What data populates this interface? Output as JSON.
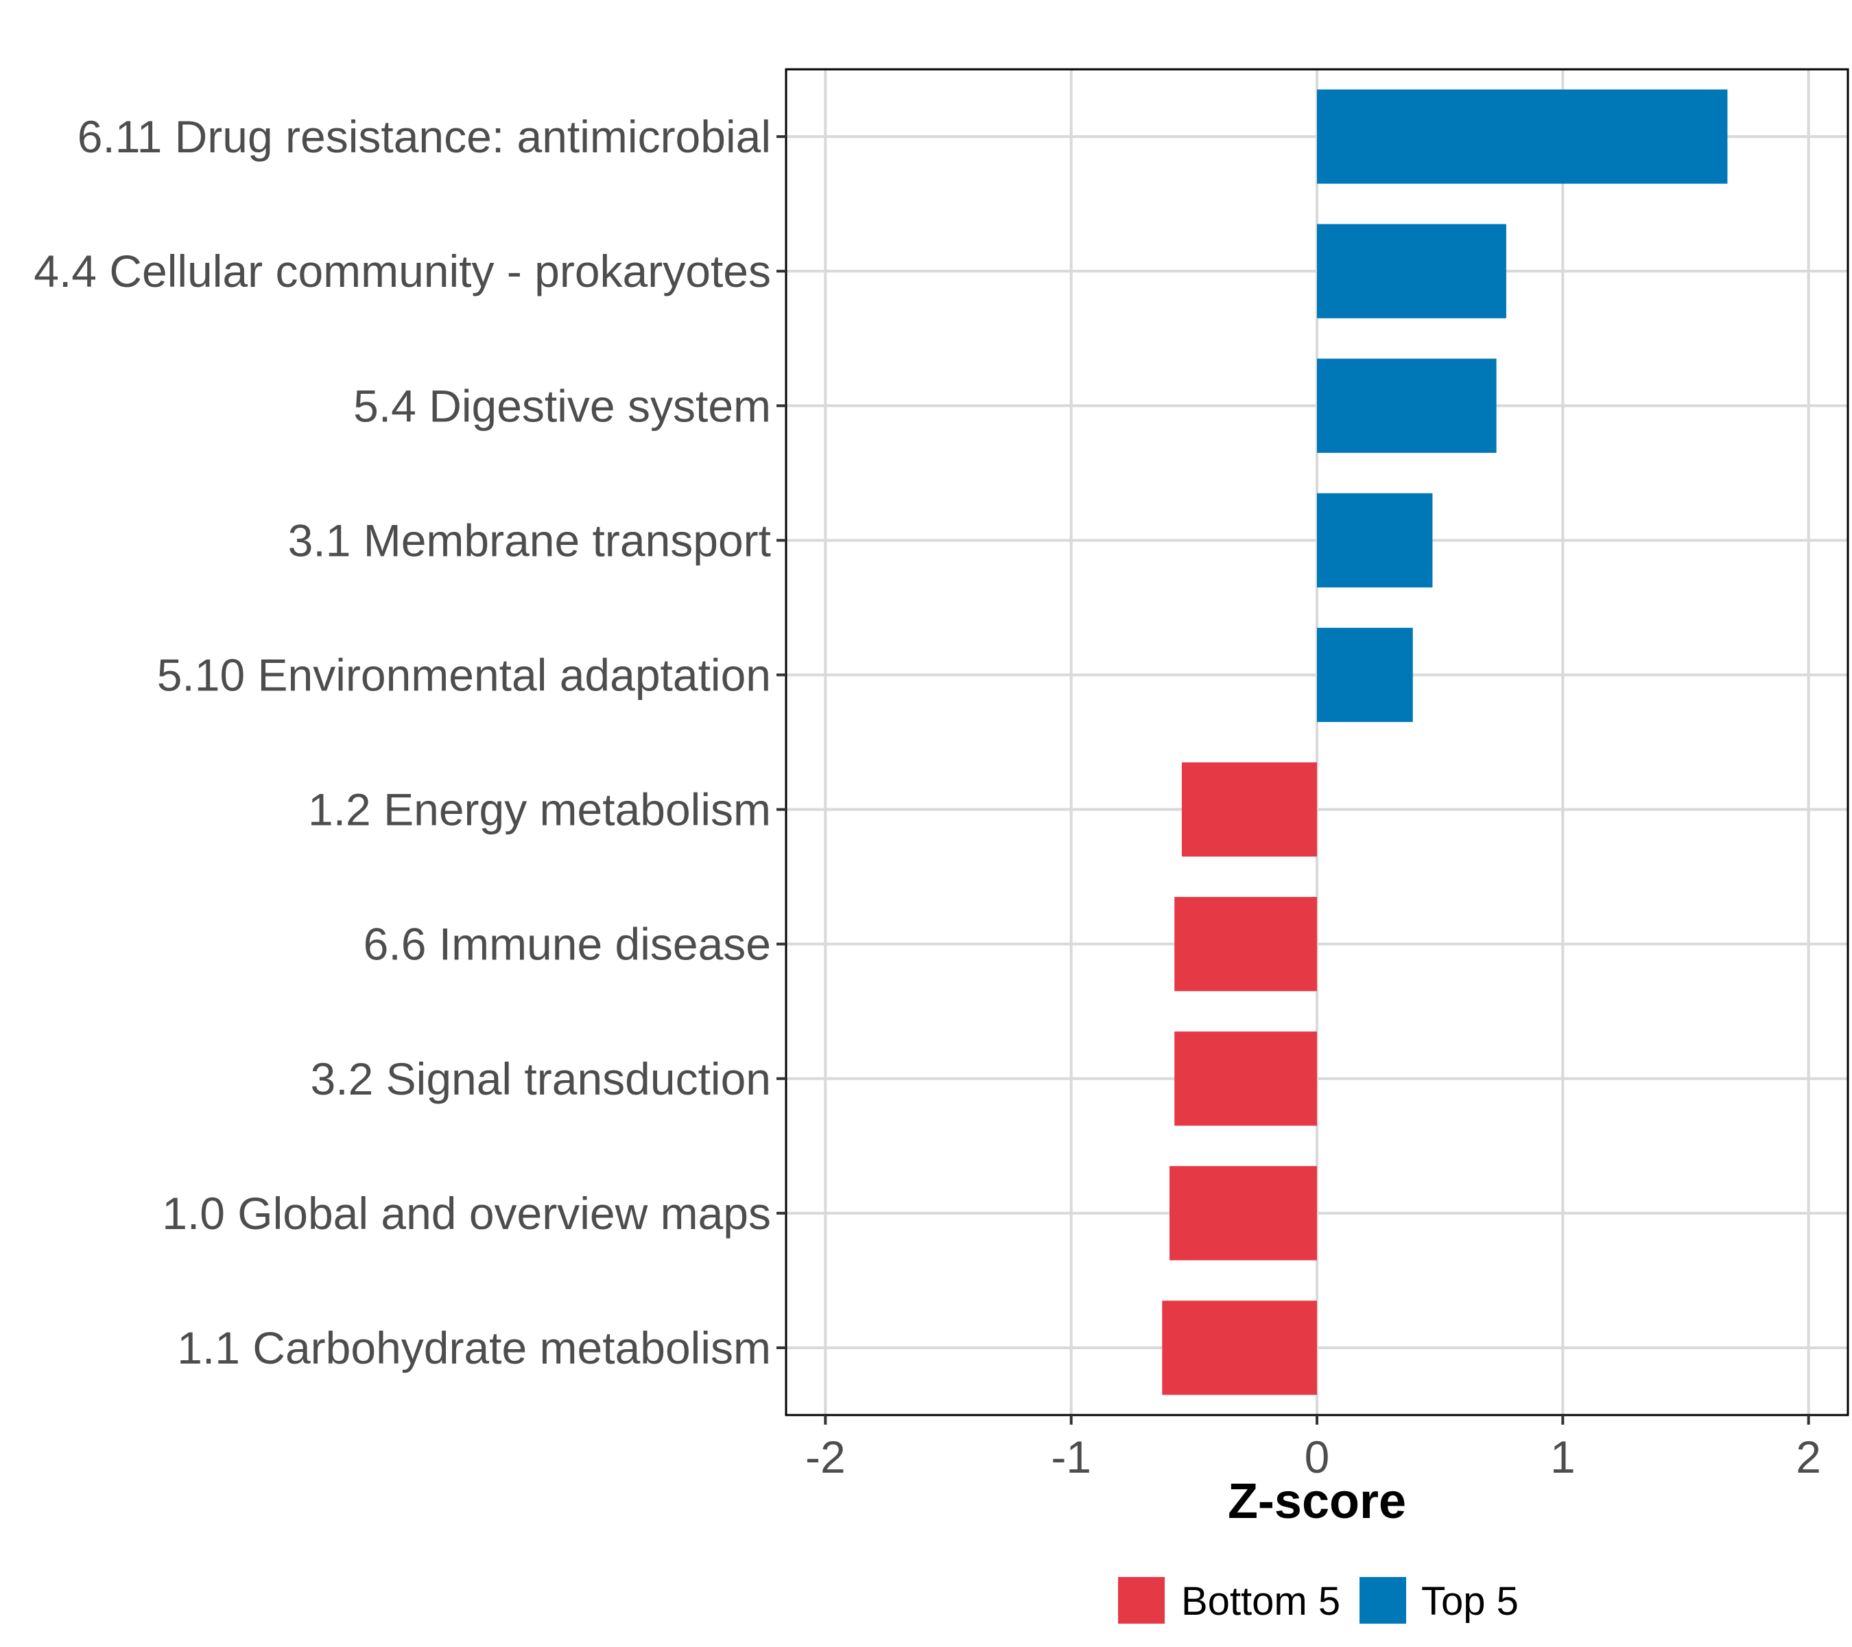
{
  "chart_data": {
    "type": "bar",
    "orientation": "horizontal",
    "title": "",
    "xlabel": "Z-score",
    "ylabel": "",
    "xlim": [
      -2.16,
      2.16
    ],
    "xticks": [
      -2,
      -1,
      0,
      1,
      2
    ],
    "xtick_labels": [
      "-2",
      "-1",
      "0",
      "1",
      "2"
    ],
    "grid": true,
    "legend_position": "bottom",
    "categories": [
      "6.11 Drug resistance: antimicrobial",
      "4.4 Cellular community - prokaryotes",
      "5.4 Digestive system",
      "3.1 Membrane transport",
      "5.10 Environmental adaptation",
      "1.2 Energy metabolism",
      "6.6 Immune disease",
      "3.2 Signal transduction",
      "1.0 Global and overview maps",
      "1.1 Carbohydrate metabolism"
    ],
    "values": [
      1.67,
      0.77,
      0.73,
      0.47,
      0.39,
      -0.55,
      -0.58,
      -0.58,
      -0.6,
      -0.63
    ],
    "groups": [
      "Top 5",
      "Top 5",
      "Top 5",
      "Top 5",
      "Top 5",
      "Bottom 5",
      "Bottom 5",
      "Bottom 5",
      "Bottom 5",
      "Bottom 5"
    ],
    "legend": [
      {
        "name": "Bottom 5",
        "color": "#e63946"
      },
      {
        "name": "Top 5",
        "color": "#0077b6"
      }
    ]
  }
}
